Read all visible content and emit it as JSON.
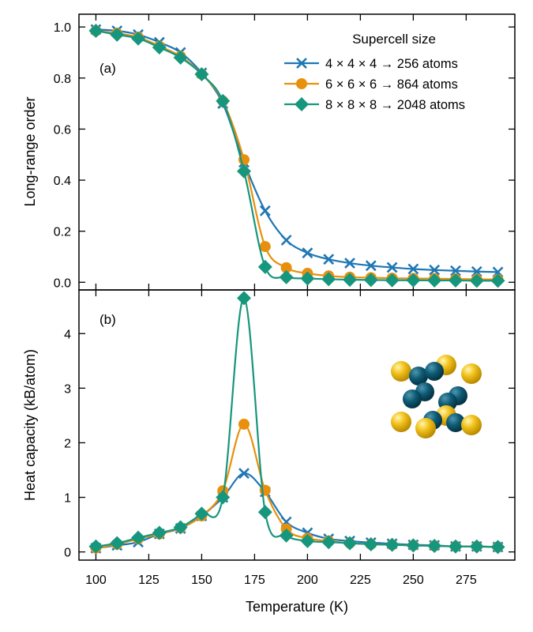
{
  "chart_data": [
    {
      "panel_label": "(a)",
      "type": "line",
      "ylabel": "Long-range order",
      "ylim": [
        -0.03,
        1.05
      ],
      "yticks": [
        0.0,
        0.2,
        0.4,
        0.6,
        0.8,
        1.0
      ],
      "ytick_labels": [
        "0.0",
        "0.2",
        "0.4",
        "0.6",
        "0.8",
        "1.0"
      ],
      "legend": {
        "title": "Supercell size",
        "placement": "top-right"
      },
      "series": [
        {
          "name": "4 × 4 × 4 → 256 atoms",
          "color": "#1f77b4",
          "marker": "x",
          "x": [
            100,
            110,
            120,
            130,
            140,
            150,
            160,
            170,
            180,
            190,
            200,
            210,
            220,
            230,
            240,
            250,
            260,
            270,
            280,
            290
          ],
          "y": [
            0.99,
            0.985,
            0.97,
            0.94,
            0.9,
            0.82,
            0.7,
            0.47,
            0.28,
            0.165,
            0.115,
            0.09,
            0.075,
            0.065,
            0.058,
            0.052,
            0.048,
            0.045,
            0.042,
            0.04
          ]
        },
        {
          "name": "6 × 6 × 6 → 864 atoms",
          "color": "#e8900d",
          "marker": "circle",
          "x": [
            100,
            110,
            120,
            130,
            140,
            150,
            160,
            170,
            180,
            190,
            200,
            210,
            220,
            230,
            240,
            250,
            260,
            270,
            280,
            290
          ],
          "y": [
            0.985,
            0.975,
            0.96,
            0.925,
            0.885,
            0.815,
            0.71,
            0.48,
            0.14,
            0.057,
            0.035,
            0.025,
            0.02,
            0.018,
            0.016,
            0.015,
            0.014,
            0.013,
            0.012,
            0.011
          ]
        },
        {
          "name": "8 × 8 × 8 → 2048 atoms",
          "color": "#16967c",
          "marker": "diamond",
          "x": [
            100,
            110,
            120,
            130,
            140,
            150,
            160,
            170,
            180,
            190,
            200,
            210,
            220,
            230,
            240,
            250,
            260,
            270,
            280,
            290
          ],
          "y": [
            0.985,
            0.97,
            0.955,
            0.92,
            0.88,
            0.815,
            0.71,
            0.435,
            0.06,
            0.02,
            0.015,
            0.012,
            0.01,
            0.009,
            0.008,
            0.008,
            0.007,
            0.007,
            0.006,
            0.006
          ]
        }
      ]
    },
    {
      "panel_label": "(b)",
      "type": "line",
      "xlabel": "Temperature (K)",
      "ylabel": "Heat capacity (kB/atom)",
      "xlim": [
        92,
        298
      ],
      "ylim": [
        -0.15,
        4.8
      ],
      "xticks": [
        100,
        125,
        150,
        175,
        200,
        225,
        250,
        275
      ],
      "xtick_labels": [
        "100",
        "125",
        "150",
        "175",
        "200",
        "225",
        "250",
        "275"
      ],
      "yticks": [
        0,
        1,
        2,
        3,
        4
      ],
      "ytick_labels": [
        "0",
        "1",
        "2",
        "3",
        "4"
      ],
      "series": [
        {
          "name": "4 × 4 × 4 → 256 atoms",
          "color": "#1f77b4",
          "marker": "x",
          "x": [
            100,
            110,
            120,
            130,
            140,
            150,
            160,
            170,
            180,
            190,
            200,
            210,
            220,
            230,
            240,
            250,
            260,
            270,
            280,
            290
          ],
          "y": [
            0.07,
            0.12,
            0.18,
            0.33,
            0.43,
            0.66,
            1.0,
            1.44,
            1.1,
            0.55,
            0.35,
            0.24,
            0.2,
            0.17,
            0.15,
            0.13,
            0.12,
            0.1,
            0.1,
            0.09
          ]
        },
        {
          "name": "6 × 6 × 6 → 864 atoms",
          "color": "#e8900d",
          "marker": "circle",
          "x": [
            100,
            110,
            120,
            130,
            140,
            150,
            160,
            170,
            180,
            190,
            200,
            210,
            220,
            230,
            240,
            250,
            260,
            270,
            280,
            290
          ],
          "y": [
            0.07,
            0.14,
            0.24,
            0.33,
            0.44,
            0.66,
            1.12,
            2.34,
            1.13,
            0.42,
            0.25,
            0.2,
            0.16,
            0.14,
            0.13,
            0.12,
            0.11,
            0.1,
            0.1,
            0.09
          ]
        },
        {
          "name": "8 × 8 × 8 → 2048 atoms",
          "color": "#16967c",
          "marker": "diamond",
          "x": [
            100,
            110,
            120,
            130,
            140,
            150,
            160,
            170,
            180,
            190,
            200,
            210,
            220,
            230,
            240,
            250,
            260,
            270,
            280,
            290
          ],
          "y": [
            0.1,
            0.16,
            0.26,
            0.35,
            0.45,
            0.7,
            1.0,
            4.65,
            0.73,
            0.3,
            0.2,
            0.18,
            0.16,
            0.14,
            0.13,
            0.12,
            0.11,
            0.1,
            0.1,
            0.09
          ]
        }
      ],
      "inset": {
        "content": "crystal-structure-illustration",
        "atom_colors": [
          "#f2c21c",
          "#0d5a75"
        ]
      }
    }
  ]
}
